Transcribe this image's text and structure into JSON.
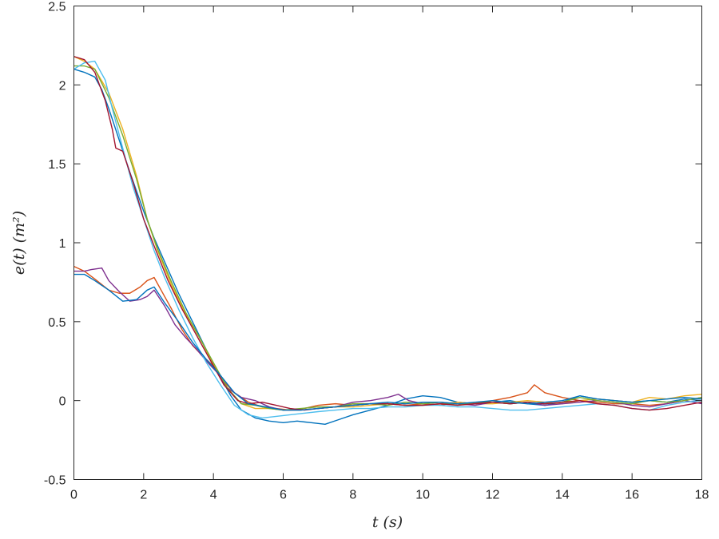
{
  "chart_data": {
    "type": "line",
    "title": "",
    "xlabel": "t (s)",
    "ylabel": "e(t) (m²)",
    "xlim": [
      0,
      18
    ],
    "ylim": [
      -0.5,
      2.5
    ],
    "xticks": [
      0,
      2,
      4,
      6,
      8,
      10,
      12,
      14,
      16,
      18
    ],
    "yticks": [
      -0.5,
      0,
      0.5,
      1,
      1.5,
      2,
      2.5
    ],
    "xtick_labels": [
      "0",
      "2",
      "4",
      "6",
      "8",
      "10",
      "12",
      "14",
      "16",
      "18"
    ],
    "ytick_labels": [
      "-0.5",
      "0",
      "0.5",
      "1",
      "1.5",
      "2",
      "2.5"
    ],
    "grid": false,
    "legend": "none",
    "series": [
      {
        "color": "#0072BD",
        "x": [
          0,
          0.3,
          0.6,
          0.8,
          1.0,
          1.3,
          1.6,
          2.0,
          2.3,
          2.7,
          3.0,
          3.4,
          3.8,
          4.2,
          4.5,
          4.8,
          5.2,
          5.6,
          6.0,
          6.4,
          6.8,
          7.2,
          7.6,
          8.0,
          8.5,
          9.0,
          9.5,
          10.0,
          10.5,
          11.0,
          11.5,
          12.0,
          12.5,
          13.0,
          13.5,
          14.0,
          14.5,
          15.0,
          15.5,
          16.0,
          16.5,
          17.0,
          17.5,
          18.0
        ],
        "y": [
          2.1,
          2.08,
          2.05,
          1.97,
          1.85,
          1.65,
          1.45,
          1.2,
          1.03,
          0.83,
          0.68,
          0.5,
          0.32,
          0.15,
          0.03,
          -0.06,
          -0.11,
          -0.13,
          -0.14,
          -0.13,
          -0.14,
          -0.15,
          -0.12,
          -0.09,
          -0.06,
          -0.03,
          0.01,
          0.03,
          0.02,
          -0.01,
          -0.02,
          -0.01,
          0.0,
          -0.02,
          -0.03,
          -0.01,
          0.03,
          0.01,
          0.0,
          -0.01,
          0.0,
          -0.01,
          0.01,
          0.0
        ]
      },
      {
        "color": "#D95319",
        "x": [
          0,
          0.3,
          0.6,
          1.0,
          1.3,
          1.6,
          1.9,
          2.1,
          2.3,
          2.5,
          2.8,
          3.1,
          3.4,
          3.7,
          4.0,
          4.3,
          4.6,
          5.0,
          5.4,
          5.8,
          6.2,
          6.6,
          7.0,
          7.5,
          8.0,
          8.5,
          9.0,
          9.5,
          10.0,
          10.5,
          11.0,
          11.5,
          12.0,
          12.5,
          13.0,
          13.2,
          13.5,
          14.0,
          14.5,
          15.0,
          15.5,
          16.0,
          16.5,
          17.0,
          17.5,
          18.0
        ],
        "y": [
          0.85,
          0.82,
          0.77,
          0.7,
          0.68,
          0.68,
          0.72,
          0.76,
          0.78,
          0.7,
          0.58,
          0.45,
          0.35,
          0.28,
          0.22,
          0.12,
          0.05,
          -0.01,
          -0.04,
          -0.05,
          -0.06,
          -0.05,
          -0.03,
          -0.02,
          -0.03,
          -0.02,
          -0.02,
          -0.03,
          -0.02,
          -0.03,
          -0.01,
          -0.02,
          0.0,
          0.02,
          0.05,
          0.1,
          0.05,
          0.02,
          0.0,
          -0.01,
          -0.02,
          -0.02,
          -0.03,
          -0.02,
          0.0,
          0.02
        ]
      },
      {
        "color": "#EDB120",
        "x": [
          0,
          0.3,
          0.6,
          1.0,
          1.4,
          1.8,
          2.1,
          2.4,
          2.8,
          3.2,
          3.6,
          4.0,
          4.4,
          4.8,
          5.2,
          5.6,
          6.0,
          6.5,
          7.0,
          7.5,
          8.0,
          8.5,
          9.0,
          9.5,
          10.0,
          10.5,
          11.0,
          11.5,
          12.0,
          12.5,
          13.0,
          13.5,
          14.0,
          14.5,
          15.0,
          15.5,
          16.0,
          16.5,
          17.0,
          17.5,
          18.0
        ],
        "y": [
          2.18,
          2.15,
          2.1,
          1.95,
          1.72,
          1.42,
          1.15,
          0.95,
          0.73,
          0.55,
          0.4,
          0.23,
          0.08,
          -0.02,
          -0.05,
          -0.05,
          -0.06,
          -0.06,
          -0.05,
          -0.04,
          -0.04,
          -0.03,
          -0.02,
          -0.03,
          -0.03,
          -0.02,
          -0.01,
          -0.02,
          -0.02,
          -0.01,
          0.0,
          -0.01,
          -0.02,
          0.0,
          0.01,
          0.0,
          -0.01,
          0.02,
          0.01,
          0.03,
          0.04
        ]
      },
      {
        "color": "#7E2F8E",
        "x": [
          0,
          0.3,
          0.5,
          0.8,
          1.0,
          1.3,
          1.6,
          1.9,
          2.1,
          2.3,
          2.6,
          2.9,
          3.2,
          3.5,
          3.8,
          4.1,
          4.4,
          4.8,
          5.2,
          5.6,
          6.0,
          6.5,
          7.0,
          7.5,
          8.0,
          8.5,
          9.0,
          9.3,
          9.6,
          10.0,
          10.5,
          11.0,
          11.5,
          12.0,
          12.5,
          13.0,
          13.5,
          14.0,
          14.5,
          15.0,
          15.5,
          16.0,
          16.5,
          17.0,
          17.5,
          18.0
        ],
        "y": [
          0.82,
          0.82,
          0.83,
          0.84,
          0.76,
          0.69,
          0.63,
          0.64,
          0.66,
          0.7,
          0.6,
          0.48,
          0.4,
          0.33,
          0.25,
          0.18,
          0.08,
          0.02,
          0.0,
          -0.04,
          -0.06,
          -0.06,
          -0.05,
          -0.04,
          -0.01,
          0.0,
          0.02,
          0.04,
          0.0,
          -0.02,
          -0.01,
          -0.02,
          -0.03,
          -0.01,
          -0.02,
          -0.01,
          -0.03,
          -0.02,
          -0.01,
          0.0,
          -0.01,
          -0.03,
          -0.04,
          -0.02,
          0.0,
          -0.02
        ]
      },
      {
        "color": "#77AC30",
        "x": [
          0,
          0.3,
          0.6,
          1.0,
          1.4,
          1.8,
          2.1,
          2.4,
          2.8,
          3.2,
          3.6,
          4.0,
          4.4,
          4.8,
          5.2,
          5.6,
          6.0,
          6.5,
          7.0,
          7.5,
          8.0,
          8.5,
          9.0,
          9.5,
          10.0,
          10.5,
          11.0,
          11.5,
          12.0,
          12.5,
          13.0,
          13.5,
          14.0,
          14.5,
          15.0,
          15.5,
          16.0,
          16.5,
          17.0,
          17.5,
          18.0
        ],
        "y": [
          2.12,
          2.12,
          2.1,
          1.92,
          1.68,
          1.4,
          1.15,
          0.96,
          0.75,
          0.56,
          0.4,
          0.24,
          0.08,
          -0.02,
          -0.03,
          -0.05,
          -0.06,
          -0.05,
          -0.04,
          -0.04,
          -0.02,
          -0.02,
          -0.03,
          -0.01,
          -0.02,
          -0.01,
          -0.03,
          -0.01,
          -0.01,
          -0.02,
          -0.01,
          -0.02,
          -0.01,
          0.02,
          0.0,
          -0.01,
          -0.02,
          0.0,
          -0.01,
          0.0,
          0.02
        ]
      },
      {
        "color": "#4DBEEE",
        "x": [
          0,
          0.3,
          0.6,
          0.9,
          1.1,
          1.4,
          1.7,
          2.0,
          2.3,
          2.6,
          3.0,
          3.4,
          3.8,
          4.2,
          4.6,
          5.0,
          5.4,
          5.8,
          6.2,
          6.6,
          7.0,
          7.5,
          8.0,
          8.5,
          9.0,
          9.5,
          10.0,
          10.5,
          11.0,
          11.5,
          12.0,
          12.5,
          13.0,
          13.5,
          14.0,
          14.5,
          15.0,
          15.5,
          16.0,
          16.5,
          17.0,
          17.5,
          18.0
        ],
        "y": [
          2.1,
          2.14,
          2.15,
          2.03,
          1.85,
          1.6,
          1.35,
          1.15,
          0.95,
          0.78,
          0.58,
          0.4,
          0.24,
          0.1,
          -0.03,
          -0.09,
          -0.11,
          -0.1,
          -0.09,
          -0.08,
          -0.07,
          -0.06,
          -0.05,
          -0.05,
          -0.04,
          -0.04,
          -0.03,
          -0.03,
          -0.04,
          -0.04,
          -0.05,
          -0.06,
          -0.06,
          -0.05,
          -0.04,
          -0.03,
          -0.02,
          -0.03,
          -0.05,
          -0.06,
          -0.03,
          -0.01,
          0.0
        ]
      },
      {
        "color": "#A2142F",
        "x": [
          0,
          0.3,
          0.6,
          0.9,
          1.1,
          1.2,
          1.4,
          1.7,
          2.0,
          2.3,
          2.7,
          3.1,
          3.5,
          3.9,
          4.3,
          4.7,
          5.0,
          5.4,
          5.8,
          6.2,
          6.6,
          7.0,
          7.5,
          8.0,
          8.5,
          9.0,
          9.5,
          10.0,
          10.5,
          11.0,
          11.5,
          12.0,
          12.5,
          13.0,
          13.5,
          14.0,
          14.5,
          15.0,
          15.5,
          16.0,
          16.5,
          17.0,
          17.5,
          18.0
        ],
        "y": [
          2.18,
          2.16,
          2.08,
          1.9,
          1.72,
          1.6,
          1.58,
          1.38,
          1.15,
          0.98,
          0.76,
          0.58,
          0.42,
          0.26,
          0.1,
          0.0,
          -0.02,
          -0.01,
          -0.03,
          -0.05,
          -0.06,
          -0.05,
          -0.04,
          -0.03,
          -0.02,
          -0.02,
          -0.03,
          -0.03,
          -0.02,
          -0.03,
          -0.02,
          -0.01,
          -0.02,
          -0.01,
          -0.02,
          -0.01,
          0.0,
          -0.02,
          -0.03,
          -0.05,
          -0.06,
          -0.05,
          -0.03,
          -0.01
        ]
      },
      {
        "color": "#0072BD",
        "x": [
          0,
          0.3,
          0.6,
          1.0,
          1.4,
          1.8,
          2.1,
          2.3,
          2.6,
          3.0,
          3.4,
          3.8,
          4.2,
          4.6,
          5.0,
          5.5,
          6.0,
          6.5,
          7.0,
          7.5,
          8.0,
          8.5,
          9.0,
          9.5,
          10.0,
          10.5,
          11.0,
          11.5,
          12.0,
          12.5,
          13.0,
          13.5,
          14.0,
          14.5,
          15.0,
          15.5,
          16.0,
          16.5,
          17.0,
          17.5,
          18.0
        ],
        "y": [
          0.8,
          0.8,
          0.76,
          0.7,
          0.63,
          0.64,
          0.7,
          0.72,
          0.62,
          0.5,
          0.37,
          0.26,
          0.16,
          0.05,
          -0.02,
          -0.04,
          -0.06,
          -0.06,
          -0.05,
          -0.04,
          -0.03,
          -0.02,
          -0.01,
          -0.02,
          -0.01,
          -0.01,
          -0.02,
          -0.01,
          0.0,
          -0.01,
          -0.02,
          -0.01,
          0.0,
          0.03,
          0.01,
          0.0,
          -0.01,
          0.0,
          0.01,
          0.02,
          0.01
        ]
      }
    ]
  }
}
